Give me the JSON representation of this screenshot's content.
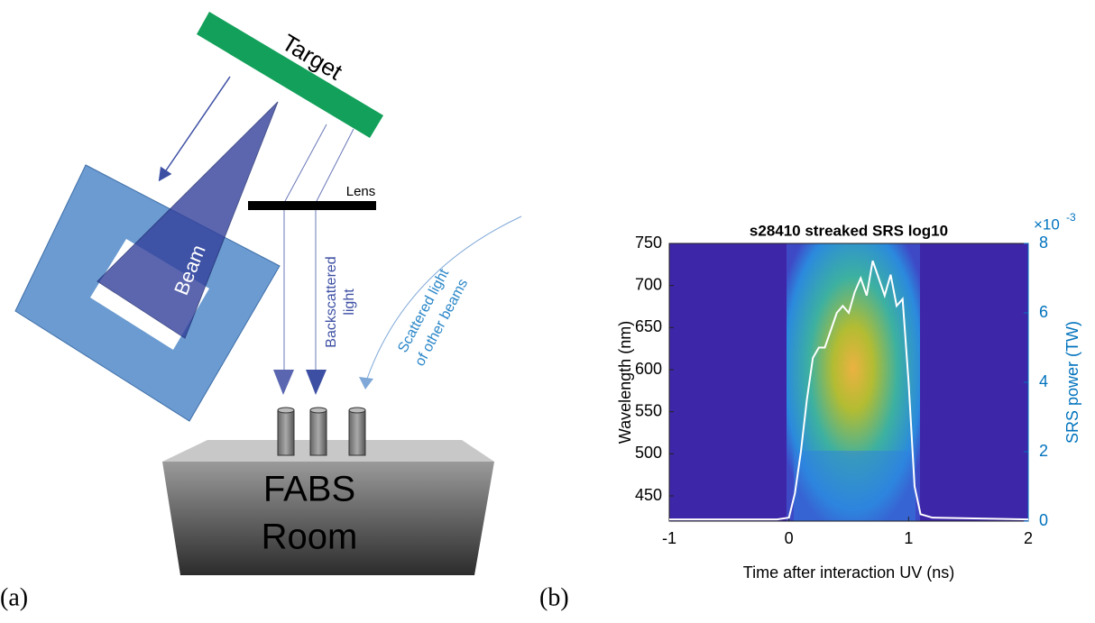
{
  "panel_a": {
    "label": "(a)",
    "target": "Target",
    "lens": "Lens",
    "beam": "Beam",
    "backscattered": [
      "Backscattered",
      "light"
    ],
    "scattered": [
      "Scattered light",
      "of other beams"
    ],
    "room": [
      "FABS",
      "Room"
    ]
  },
  "panel_b": {
    "label": "(b)"
  },
  "chart_data": {
    "type": "line",
    "title": "s28410 streaked SRS log10",
    "x_label": "Time after interaction UV (ns)",
    "y_label": "Wavelength (nm)",
    "y2_label": "SRS power (TW)",
    "y2_multiplier": "×10",
    "y2_exponent": "-3",
    "x": [
      -1,
      -0.1,
      0,
      0.05,
      0.1,
      0.15,
      0.2,
      0.25,
      0.3,
      0.35,
      0.4,
      0.45,
      0.5,
      0.55,
      0.6,
      0.65,
      0.7,
      0.75,
      0.8,
      0.85,
      0.9,
      0.95,
      1.0,
      1.05,
      1.1,
      1.2,
      2
    ],
    "series": [
      {
        "color": "#ffffff",
        "axis": "y2",
        "values": [
          0.05,
          0.05,
          0.1,
          0.8,
          2,
          3.5,
          4.7,
          5,
          5,
          5.5,
          6,
          6.2,
          6,
          6.6,
          7,
          6.5,
          7.5,
          7,
          6.5,
          7.1,
          6.2,
          6.4,
          4,
          1,
          0.2,
          0.1,
          0.05
        ]
      }
    ],
    "xlim": [
      -1,
      2
    ],
    "xticks": [
      -1,
      0,
      1,
      2
    ],
    "ylim": [
      420,
      750
    ],
    "yticks": [
      450,
      500,
      550,
      600,
      650,
      700,
      750
    ],
    "y2lim": [
      0,
      8
    ],
    "y2ticks": [
      0,
      2,
      4,
      6,
      8
    ],
    "y2_color": "#0072bd"
  }
}
